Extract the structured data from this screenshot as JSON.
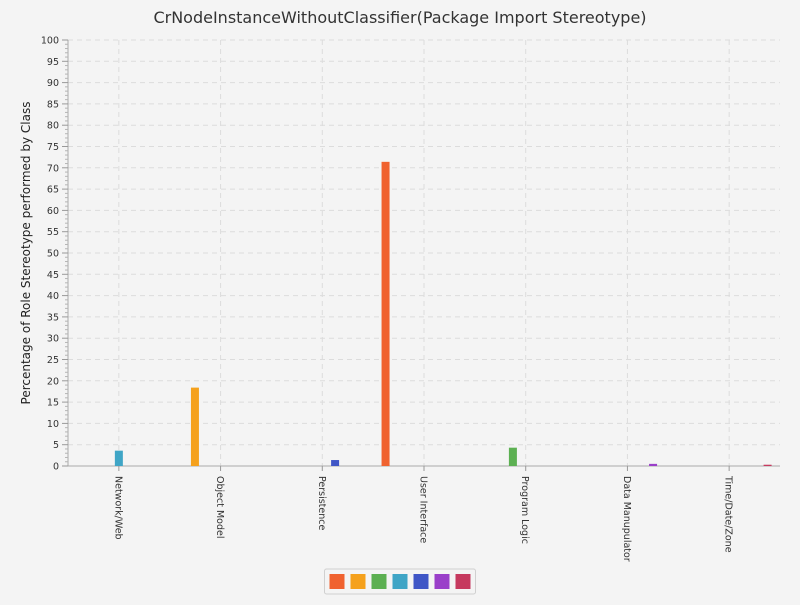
{
  "chart_data": {
    "type": "bar",
    "title": "CrNodeInstanceWithoutClassifier(Package Import Stereotype)",
    "xlabel": "",
    "ylabel": "Percentage of Role Stereotype performed by Class",
    "ylim": [
      0,
      100
    ],
    "ytick_step": 5,
    "categories": [
      "Network/Web",
      "Object Model",
      "Persistence",
      "User Interface",
      "Program Logic",
      "Data Manupulator",
      "Time/Date/Zone"
    ],
    "series": [
      {
        "color": "#f0622f",
        "values": [
          0,
          0,
          0,
          71.4,
          0,
          0,
          0
        ]
      },
      {
        "color": "#f5a11c",
        "values": [
          0,
          18.4,
          0,
          0,
          0,
          0,
          0
        ]
      },
      {
        "color": "#5cb052",
        "values": [
          0,
          0,
          0,
          0,
          4.3,
          0,
          0
        ]
      },
      {
        "color": "#3fa5c6",
        "values": [
          3.6,
          0,
          0,
          0,
          0,
          0,
          0
        ]
      },
      {
        "color": "#3f56c6",
        "values": [
          0,
          0,
          1.4,
          0,
          0,
          0,
          0
        ]
      },
      {
        "color": "#9a3fc9",
        "values": [
          0,
          0,
          0,
          0,
          0,
          0.5,
          0
        ]
      },
      {
        "color": "#c63a5f",
        "values": [
          0,
          0,
          0,
          0,
          0,
          0,
          0.3
        ]
      }
    ],
    "grid": true,
    "legend_position": "bottom"
  }
}
